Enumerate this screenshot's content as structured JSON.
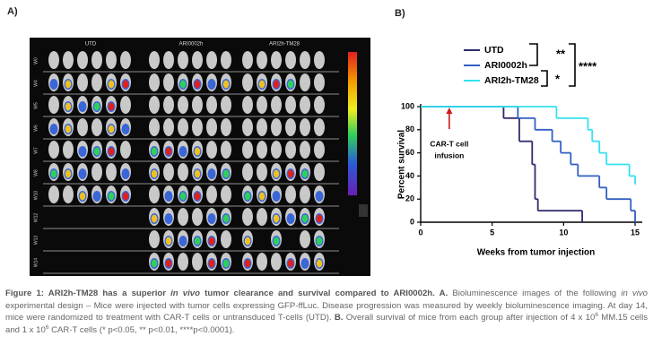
{
  "panel_a": {
    "label": "A)",
    "columns": [
      "UTD",
      "ARI0002h",
      "ARI2h-TM28"
    ],
    "rows": [
      "W0",
      "W4",
      "W5",
      "W6",
      "W7",
      "W8",
      "W10",
      "W12",
      "W13",
      "W14"
    ]
  },
  "chart_data": {
    "type": "step",
    "panel_label": "B)",
    "xlabel": "Weeks from tumor injection",
    "ylabel": "Percent survival",
    "xlim": [
      0,
      15.5
    ],
    "xticks": [
      0,
      5,
      10,
      15
    ],
    "ylim": [
      0,
      100
    ],
    "yticks": [
      0,
      20,
      40,
      60,
      80,
      100
    ],
    "series": [
      {
        "name": "UTD",
        "color": "#2e2b6e",
        "x": [
          0,
          5.8,
          6.9,
          7.8,
          8.0,
          8.2,
          11.3
        ],
        "values": [
          100,
          90,
          70,
          50,
          20,
          10,
          0
        ]
      },
      {
        "name": "ARI0002h",
        "color": "#3160c2",
        "x": [
          0,
          6.8,
          8.0,
          9.2,
          9.8,
          10.5,
          11.0,
          12.5,
          13.0,
          14.7,
          15.0
        ],
        "values": [
          100,
          90,
          80,
          70,
          60,
          50,
          40,
          30,
          20,
          10,
          0
        ]
      },
      {
        "name": "ARI2h-TM28",
        "color": "#33e3ef",
        "x": [
          0,
          9.5,
          11.7,
          12.0,
          12.5,
          13.0,
          14.6,
          15.0
        ],
        "values": [
          100,
          90,
          80,
          70,
          60,
          50,
          40,
          33
        ]
      }
    ],
    "significance": [
      "**",
      "*",
      "****"
    ],
    "annotation": {
      "lines": [
        "CAR-T cell",
        "infusion"
      ],
      "x": 2
    }
  },
  "caption": [
    {
      "text": "Figure 1: ARI2h-TM28 has a superior ",
      "style": "bold"
    },
    {
      "text": "in vivo",
      "style": "bold-italic"
    },
    {
      "text": " tumor clearance and survival compared to ARI0002h. A.",
      "style": "bold"
    },
    {
      "text": " Bioluminescence images of the following ",
      "style": "normal"
    },
    {
      "text": "in vivo",
      "style": "italic"
    },
    {
      "text": " experimental design – Mice were injected with tumor cells expressing GFP-ffLuc. Disease progression was measured by weekly bioluminescence imaging. At day 14, mice were randomized to treatment with CAR-T cells or untransduced T-cells (UTD). ",
      "style": "normal"
    },
    {
      "text": "B.",
      "style": "bold"
    },
    {
      "text": " Overall survival of mice from each group after injection of 4 x 10",
      "style": "normal"
    },
    {
      "text": "6",
      "style": "sup"
    },
    {
      "text": " MM.15 cells and 1 x 10",
      "style": "normal"
    },
    {
      "text": "6",
      "style": "sup"
    },
    {
      "text": " CAR-T cells (* p<0.05, ** p<0.01, ****p<0.0001).",
      "style": "normal"
    }
  ]
}
